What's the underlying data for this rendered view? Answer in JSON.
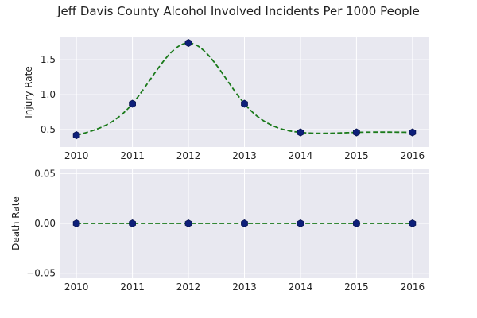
{
  "chart_data": [
    {
      "type": "line",
      "title": "Jeff Davis County Alcohol Involved Incidents Per 1000 People",
      "xlabel": "",
      "ylabel": "Injury Rate",
      "x": [
        2010,
        2011,
        2012,
        2013,
        2014,
        2015,
        2016
      ],
      "x_tick_labels": [
        "2010",
        "2011",
        "2012",
        "2013",
        "2014",
        "2015",
        "2016"
      ],
      "y_ticks": [
        0.5,
        1.0,
        1.5
      ],
      "y_tick_labels": [
        "0.5",
        "1.0",
        "1.5"
      ],
      "ylim": [
        0.25,
        1.82
      ],
      "series": [
        {
          "values": [
            0.42,
            0.87,
            1.74,
            0.87,
            0.46,
            0.46,
            0.46
          ],
          "marker_color": "#0d1f7a",
          "line_color": "#1b7a1b",
          "line_style": "dashed",
          "smoothed": true
        }
      ],
      "grid": true,
      "background": "#e8e8f0"
    },
    {
      "type": "line",
      "xlabel": "",
      "ylabel": "Death Rate",
      "x": [
        2010,
        2011,
        2012,
        2013,
        2014,
        2015,
        2016
      ],
      "x_tick_labels": [
        "2010",
        "2011",
        "2012",
        "2013",
        "2014",
        "2015",
        "2016"
      ],
      "y_ticks": [
        -0.05,
        0.0,
        0.05
      ],
      "y_tick_labels": [
        "−0.05",
        "0.00",
        "0.05"
      ],
      "ylim": [
        -0.055,
        0.055
      ],
      "series": [
        {
          "values": [
            0,
            0,
            0,
            0,
            0,
            0,
            0
          ],
          "marker_color": "#0d1f7a",
          "line_color": "#1b7a1b",
          "line_style": "dashed",
          "smoothed": true
        }
      ],
      "grid": true,
      "background": "#e8e8f0"
    }
  ]
}
